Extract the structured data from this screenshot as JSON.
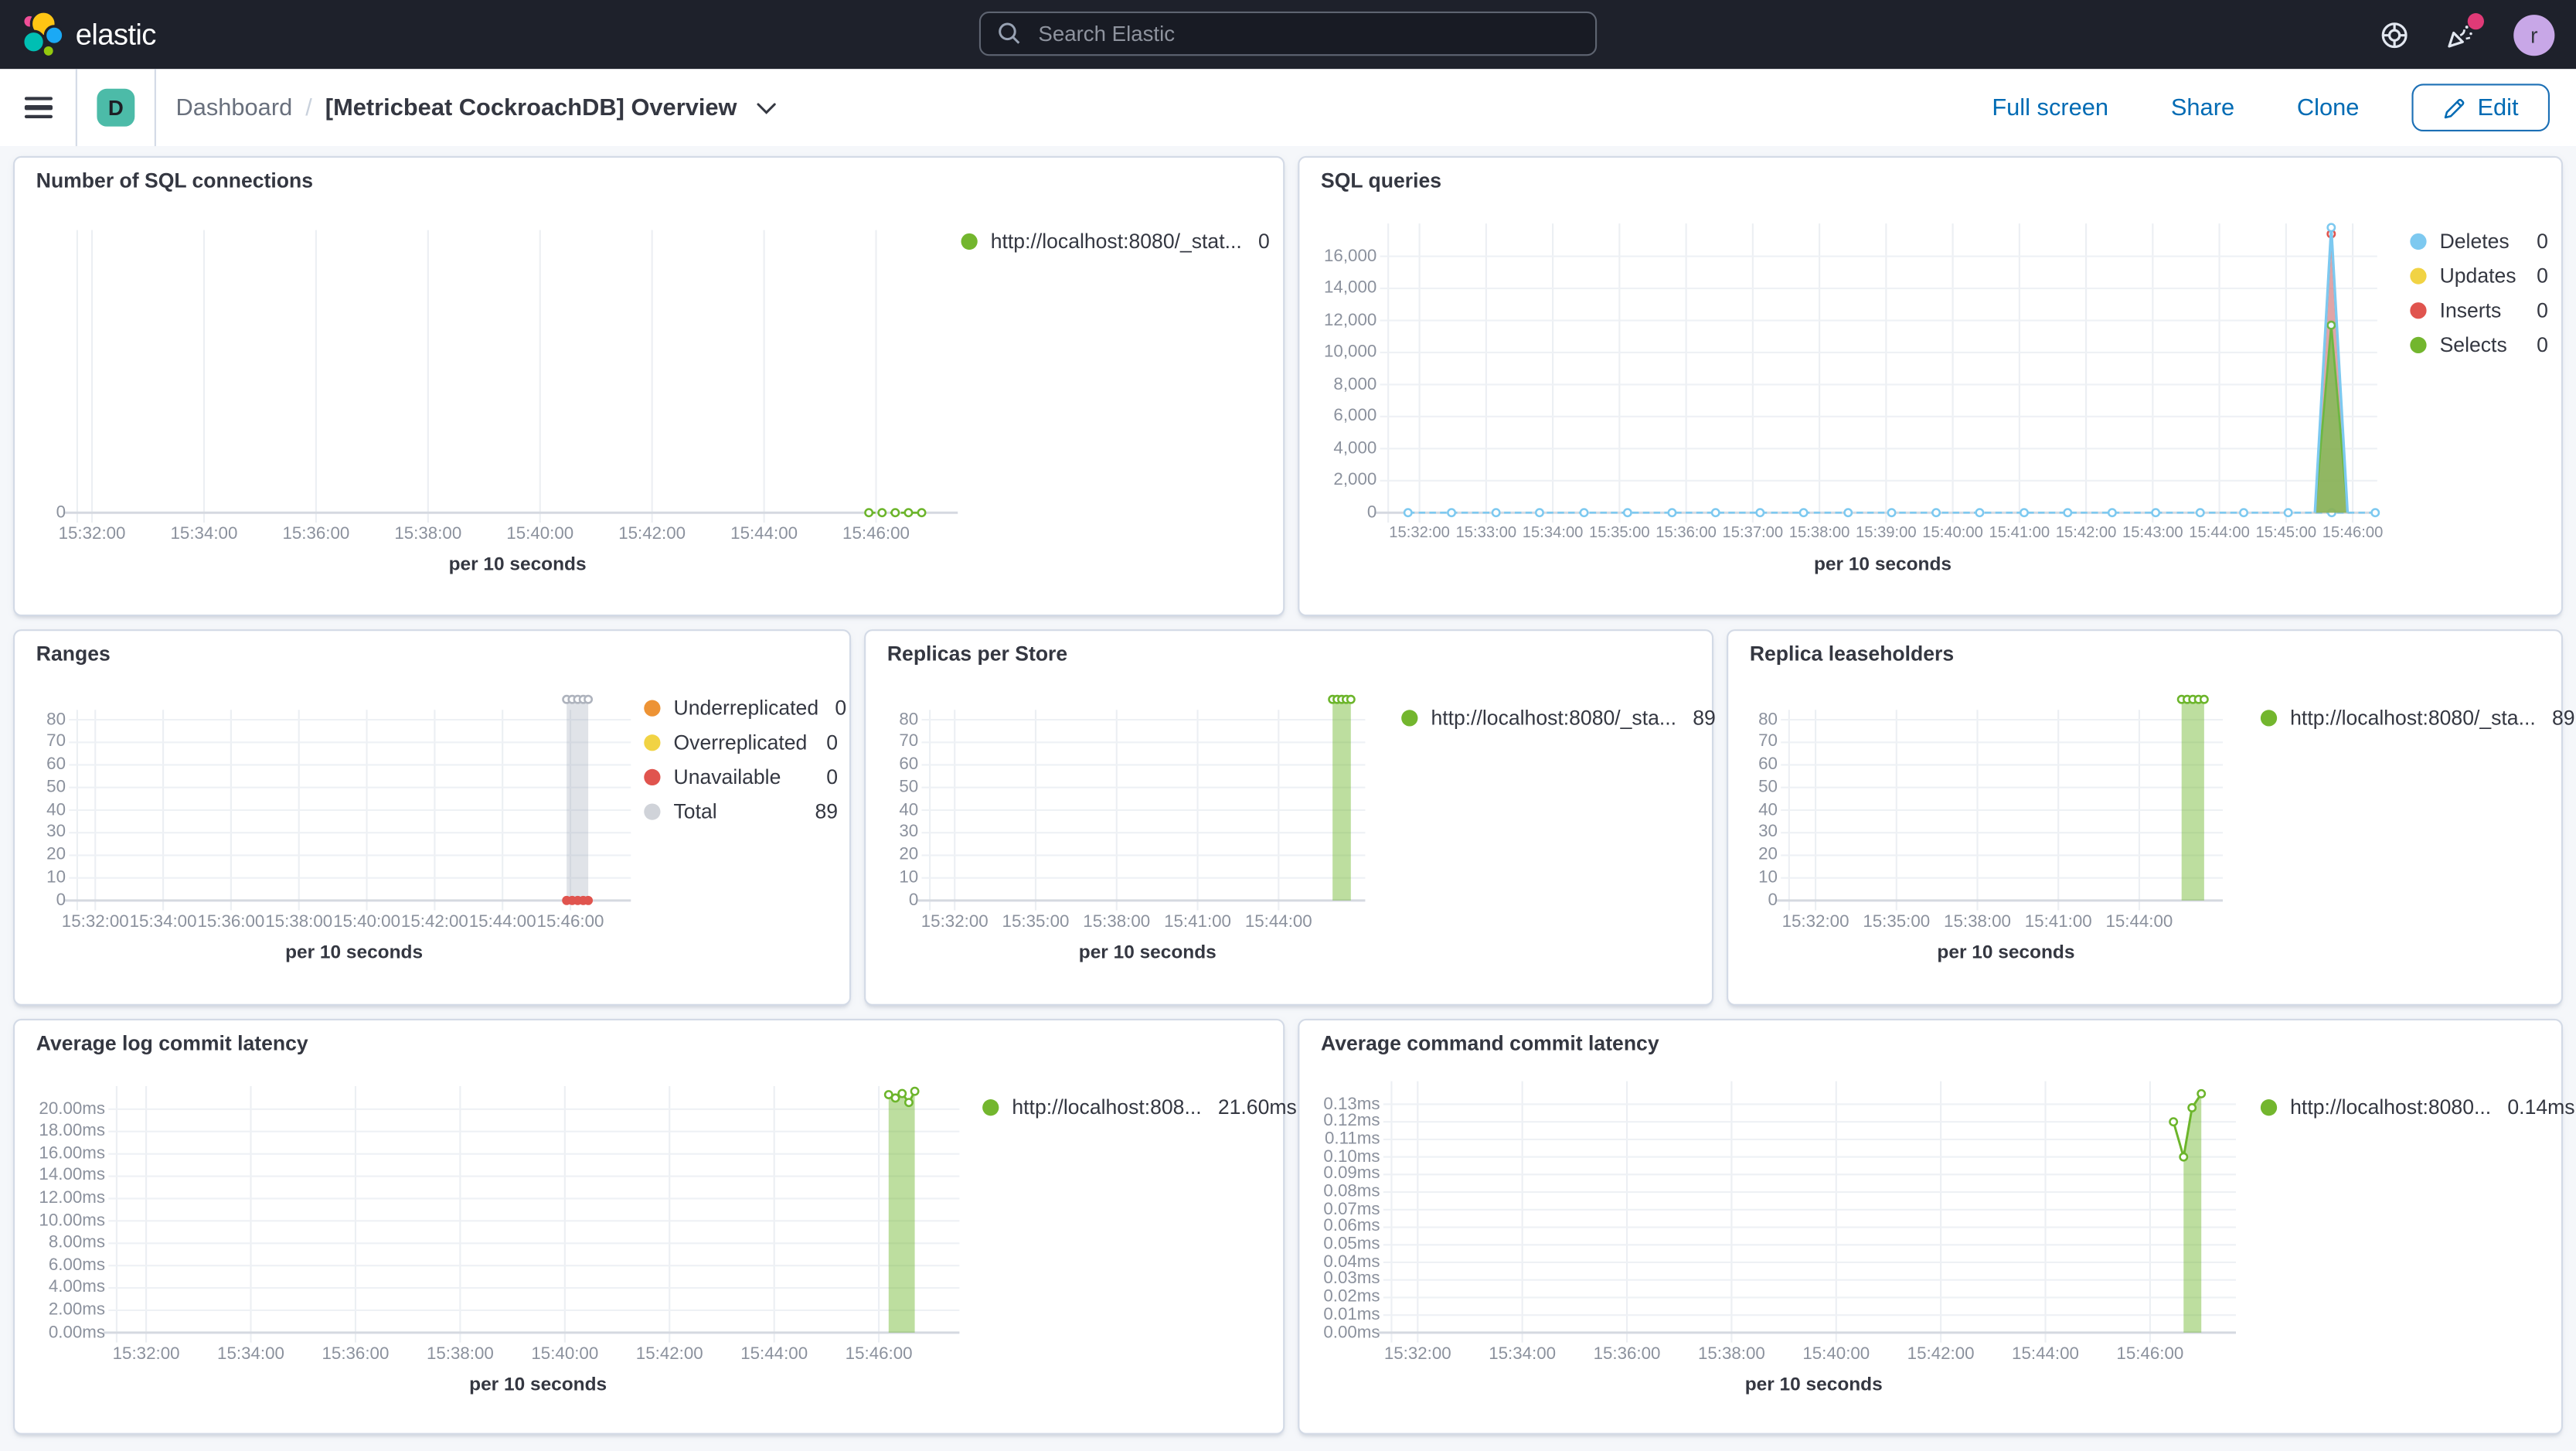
{
  "header": {
    "logo_text": "elastic",
    "search_placeholder": "Search Elastic",
    "avatar_initial": "r",
    "accent_notification_color": "#E03A77"
  },
  "toolbar": {
    "menu_badge": "D",
    "breadcrumb": [
      "Dashboard",
      "[Metricbeat CockroachDB] Overview"
    ],
    "breadcrumb_separator": "/",
    "actions": [
      "Full screen",
      "Share",
      "Clone"
    ],
    "edit_label": "Edit",
    "link_color": "#006BB4"
  },
  "panels": [
    {
      "title": "Number of SQL connections",
      "legend": [
        {
          "label": "http://localhost:8080/_stat...",
          "value": "0",
          "color": "#73B62E"
        }
      ],
      "chart": {
        "type": "line",
        "y_ticks": [
          "0"
        ],
        "y_top_value": 1,
        "x_ticks": [
          "15:32:00",
          "15:34:00",
          "15:36:00",
          "15:38:00",
          "15:40:00",
          "15:42:00",
          "15:44:00",
          "15:46:00"
        ],
        "x_axis_title": "per 10 seconds",
        "series": [
          {
            "name": "http://localhost:8080/_stat...",
            "color": "#6CB52B",
            "type": "line",
            "dashed": true,
            "width": 1.3,
            "markers": "all",
            "points": [
              [
                0.899,
                0
              ],
              [
                0.914,
                0
              ],
              [
                0.929,
                0
              ],
              [
                0.944,
                0
              ],
              [
                0.959,
                0
              ]
            ]
          }
        ]
      }
    },
    {
      "title": "SQL queries",
      "legend": [
        {
          "label": "Deletes",
          "value": "0",
          "color": "#7DC9F0"
        },
        {
          "label": "Updates",
          "value": "0",
          "color": "#F1D344"
        },
        {
          "label": "Inserts",
          "value": "0",
          "color": "#E0544E"
        },
        {
          "label": "Selects",
          "value": "0",
          "color": "#73B62E"
        }
      ],
      "chart": {
        "type": "line",
        "y_ticks": [
          "16,000",
          "14,000",
          "12,000",
          "10,000",
          "8,000",
          "6,000",
          "4,000",
          "2,000",
          "0"
        ],
        "y_top_value": 16000,
        "x_ticks": [
          "15:32:00",
          "15:33:00",
          "15:34:00",
          "15:35:00",
          "15:36:00",
          "15:37:00",
          "15:38:00",
          "15:39:00",
          "15:40:00",
          "15:41:00",
          "15:42:00",
          "15:43:00",
          "15:44:00",
          "15:45:00",
          "15:46:00"
        ],
        "x_axis_title": "per 10 seconds",
        "series": [
          {
            "name": "Deletes",
            "color": "#7DC9F0",
            "type": "line",
            "dashed": true,
            "width": 1.2,
            "markers": "all",
            "points": [
              [
                0.02,
                0
              ],
              [
                0.064,
                0
              ],
              [
                0.109,
                0
              ],
              [
                0.153,
                0
              ],
              [
                0.198,
                0
              ],
              [
                0.242,
                0
              ],
              [
                0.287,
                0
              ],
              [
                0.331,
                0
              ],
              [
                0.376,
                0
              ],
              [
                0.42,
                0
              ],
              [
                0.465,
                0
              ],
              [
                0.509,
                0
              ],
              [
                0.554,
                0
              ],
              [
                0.598,
                0
              ],
              [
                0.643,
                0
              ],
              [
                0.687,
                0
              ],
              [
                0.732,
                0
              ],
              [
                0.776,
                0
              ],
              [
                0.821,
                0
              ],
              [
                0.865,
                0
              ],
              [
                0.91,
                0
              ],
              [
                0.954,
                0
              ],
              [
                0.998,
                0
              ]
            ]
          },
          {
            "name": "Inserts",
            "color": "#E0544E",
            "type": "area",
            "fill": "rgba(224,84,78,0.55)",
            "width": 1.2,
            "markers": [
              1
            ],
            "points": [
              [
                0.937,
                0
              ],
              [
                0.9535,
                17400
              ],
              [
                0.97,
                0
              ]
            ]
          },
          {
            "name": "Selects",
            "color": "#6CB52B",
            "type": "area",
            "fill": "rgba(132,185,66,0.85)",
            "width": 1.3,
            "markers": [
              1
            ],
            "points": [
              [
                0.937,
                0
              ],
              [
                0.9535,
                11700
              ],
              [
                0.97,
                0
              ]
            ]
          },
          {
            "name": "Deletes",
            "color": "#7DC9F0",
            "type": "area",
            "fill": "rgba(125,201,240,0.12)",
            "width": 1.6,
            "markers": [
              1
            ],
            "points": [
              [
                0.937,
                0
              ],
              [
                0.9535,
                17800
              ],
              [
                0.97,
                0
              ]
            ]
          }
        ]
      }
    },
    {
      "title": "Ranges",
      "legend": [
        {
          "label": "Underreplicated",
          "value": "0",
          "color": "#ED9335"
        },
        {
          "label": "Overreplicated",
          "value": "0",
          "color": "#F1D344"
        },
        {
          "label": "Unavailable",
          "value": "0",
          "color": "#E0544E"
        },
        {
          "label": "Total",
          "value": "89",
          "color": "#D0D3D9"
        }
      ],
      "chart": {
        "type": "bar",
        "y_ticks": [
          "80",
          "70",
          "60",
          "50",
          "40",
          "30",
          "20",
          "10",
          "0"
        ],
        "y_top_value": 80,
        "x_ticks": [
          "15:32:00",
          "15:34:00",
          "15:36:00",
          "15:38:00",
          "15:40:00",
          "15:42:00",
          "15:44:00",
          "15:46:00"
        ],
        "x_axis_title": "per 10 seconds",
        "series": [
          {
            "name": "Total",
            "color": "#AEB3BD",
            "stroke": "#CACDD4",
            "type": "area",
            "fill": "rgba(152,162,179,0.30)",
            "width": 1,
            "markers": "all",
            "points": [
              [
                0.884,
                89
              ],
              [
                0.894,
                89
              ],
              [
                0.904,
                89
              ],
              [
                0.914,
                89
              ],
              [
                0.923,
                89
              ]
            ]
          },
          {
            "name": "Unavailable",
            "color": "#E0544E",
            "type": "line",
            "width": 1.2,
            "markers": "all",
            "marker_filled": true,
            "points": [
              [
                0.884,
                0
              ],
              [
                0.894,
                0
              ],
              [
                0.904,
                0
              ],
              [
                0.914,
                0
              ],
              [
                0.923,
                0
              ]
            ]
          }
        ]
      }
    },
    {
      "title": "Replicas per Store",
      "legend": [
        {
          "label": "http://localhost:8080/_sta...",
          "value": "89",
          "color": "#73B62E"
        }
      ],
      "chart": {
        "type": "bar",
        "y_ticks": [
          "80",
          "70",
          "60",
          "50",
          "40",
          "30",
          "20",
          "10",
          "0"
        ],
        "y_top_value": 80,
        "x_ticks": [
          "15:32:00",
          "15:35:00",
          "15:38:00",
          "15:41:00",
          "15:44:00"
        ],
        "x_axis_title": "per 10 seconds",
        "series": [
          {
            "name": "http://localhost:8080/_sta...",
            "color": "#6CB52B",
            "stroke": "#8FC35B",
            "type": "area",
            "fill": "rgba(108,181,43,0.45)",
            "width": 1.1,
            "markers": "all",
            "points": [
              [
                0.925,
                89
              ],
              [
                0.9355,
                89
              ],
              [
                0.946,
                89
              ],
              [
                0.9565,
                89
              ],
              [
                0.967,
                89
              ]
            ]
          }
        ]
      }
    },
    {
      "title": "Replica leaseholders",
      "legend": [
        {
          "label": "http://localhost:8080/_sta...",
          "value": "89",
          "color": "#73B62E"
        }
      ],
      "chart": {
        "type": "bar",
        "y_ticks": [
          "80",
          "70",
          "60",
          "50",
          "40",
          "30",
          "20",
          "10",
          "0"
        ],
        "y_top_value": 80,
        "x_ticks": [
          "15:32:00",
          "15:35:00",
          "15:38:00",
          "15:41:00",
          "15:44:00"
        ],
        "x_axis_title": "per 10 seconds",
        "series": [
          {
            "name": "http://localhost:8080/_sta...",
            "color": "#6CB52B",
            "stroke": "#8FC35B",
            "type": "area",
            "fill": "rgba(108,181,43,0.45)",
            "width": 1.1,
            "markers": "all",
            "points": [
              [
                0.905,
                89
              ],
              [
                0.918,
                89
              ],
              [
                0.931,
                89
              ],
              [
                0.944,
                89
              ],
              [
                0.957,
                89
              ]
            ]
          }
        ]
      }
    },
    {
      "title": "Average log commit latency",
      "legend": [
        {
          "label": "http://localhost:808...",
          "value": "21.60ms",
          "color": "#73B62E"
        }
      ],
      "chart": {
        "type": "area",
        "y_ticks": [
          "20.00ms",
          "18.00ms",
          "16.00ms",
          "14.00ms",
          "12.00ms",
          "10.00ms",
          "8.00ms",
          "6.00ms",
          "4.00ms",
          "2.00ms",
          "0.00ms"
        ],
        "y_top_value": 20,
        "x_ticks": [
          "15:32:00",
          "15:34:00",
          "15:36:00",
          "15:38:00",
          "15:40:00",
          "15:42:00",
          "15:44:00",
          "15:46:00"
        ],
        "x_axis_title": "per 10 seconds",
        "series": [
          {
            "name": "http://localhost:808...",
            "color": "#6CB52B",
            "type": "area",
            "fill": "rgba(108,181,43,0.45)",
            "width": 1.3,
            "markers": "all",
            "points": [
              [
                0.916,
                21.3
              ],
              [
                0.924,
                21.0
              ],
              [
                0.932,
                21.4
              ],
              [
                0.94,
                20.6
              ],
              [
                0.947,
                21.6
              ]
            ]
          }
        ]
      }
    },
    {
      "title": "Average command commit latency",
      "legend": [
        {
          "label": "http://localhost:8080...",
          "value": "0.14ms",
          "color": "#73B62E"
        }
      ],
      "chart": {
        "type": "line",
        "y_ticks": [
          "0.13ms",
          "0.12ms",
          "0.11ms",
          "0.10ms",
          "0.09ms",
          "0.08ms",
          "0.07ms",
          "0.06ms",
          "0.05ms",
          "0.04ms",
          "0.03ms",
          "0.02ms",
          "0.01ms",
          "0.00ms"
        ],
        "y_top_value": 0.13,
        "x_ticks": [
          "15:32:00",
          "15:34:00",
          "15:36:00",
          "15:38:00",
          "15:40:00",
          "15:42:00",
          "15:44:00",
          "15:46:00"
        ],
        "x_axis_title": "per 10 seconds",
        "series": [
          {
            "name": "http://localhost:8080...",
            "color": "#6CB52B",
            "stroke": "none",
            "type": "area",
            "fill": "rgba(108,181,43,0.45)",
            "markers": "none",
            "points": [
              [
                0.938,
                0.1
              ],
              [
                0.948,
                0.128
              ],
              [
                0.959,
                0.136
              ]
            ]
          },
          {
            "name": "http://localhost:8080...",
            "color": "#6CB52B",
            "type": "line",
            "width": 1.4,
            "markers": "all",
            "points": [
              [
                0.926,
                0.12
              ],
              [
                0.938,
                0.1
              ],
              [
                0.948,
                0.128
              ],
              [
                0.959,
                0.136
              ]
            ]
          }
        ]
      }
    }
  ]
}
